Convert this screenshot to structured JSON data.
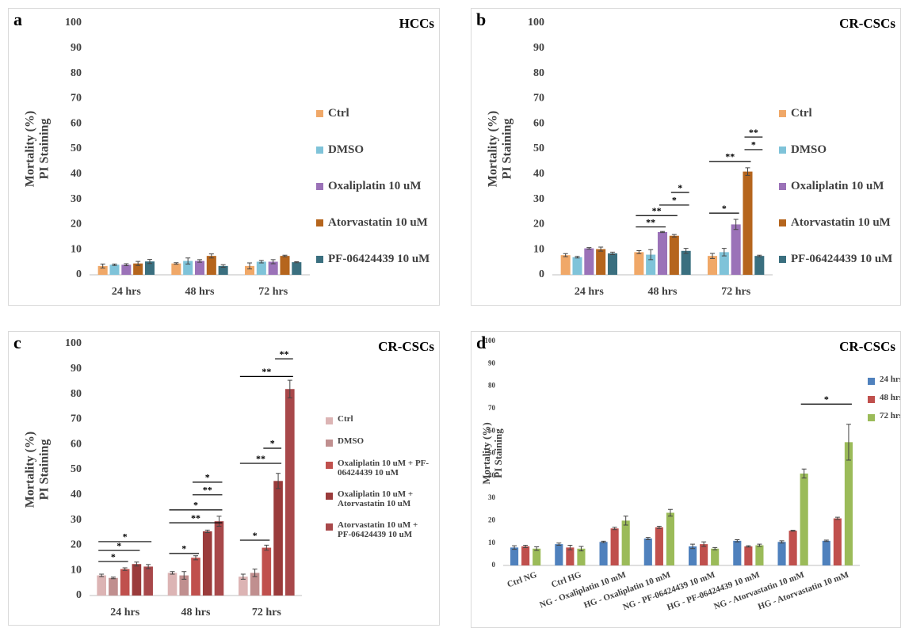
{
  "chart_data": [
    {
      "type": "bar",
      "panel": "a",
      "title": "HCCs",
      "ylabel": [
        "Mortality (%)",
        "PI Staining"
      ],
      "categories": [
        "24 hrs",
        "48 hrs",
        "72 hrs"
      ],
      "series": [
        {
          "name": "Ctrl",
          "color": "#f0a868",
          "values": [
            3.5,
            4.5,
            3.5
          ],
          "errors": [
            0.8,
            0.3,
            1.2
          ]
        },
        {
          "name": "DMSO",
          "color": "#7fc3d9",
          "values": [
            4,
            5.5,
            5.2
          ],
          "errors": [
            0.3,
            1.2,
            0.5
          ]
        },
        {
          "name": "Oxaliplatin 10 uM",
          "color": "#9b72b8",
          "values": [
            4,
            5.5,
            5.2
          ],
          "errors": [
            0.4,
            0.5,
            0.8
          ]
        },
        {
          "name": "Atorvastatin 10 uM",
          "color": "#b5651d",
          "values": [
            4.5,
            7.5,
            7.5
          ],
          "errors": [
            0.8,
            0.8,
            0.3
          ]
        },
        {
          "name": "PF-06424439 10 uM",
          "color": "#3a6f7f",
          "values": [
            5.3,
            3.5,
            5
          ],
          "errors": [
            0.8,
            0.5,
            0.2
          ]
        }
      ],
      "ylim": [
        0,
        100
      ],
      "yticks": [
        0,
        10,
        20,
        30,
        40,
        50,
        60,
        70,
        80,
        90,
        100
      ],
      "annotations": []
    },
    {
      "type": "bar",
      "panel": "b",
      "title": "CR-CSCs",
      "ylabel": [
        "Mortality (%)",
        "PI Staining"
      ],
      "categories": [
        "24 hrs",
        "48 hrs",
        "72 hrs"
      ],
      "series": [
        {
          "name": "Ctrl",
          "color": "#f0a868",
          "values": [
            7.8,
            9,
            7.5
          ],
          "errors": [
            0.6,
            0.6,
            1
          ]
        },
        {
          "name": "DMSO",
          "color": "#7fc3d9",
          "values": [
            7,
            8,
            9
          ],
          "errors": [
            0.3,
            2,
            1.5
          ]
        },
        {
          "name": "Oxaliplatin 10 uM",
          "color": "#9b72b8",
          "values": [
            10.5,
            17,
            20
          ],
          "errors": [
            0.3,
            0.2,
            2
          ]
        },
        {
          "name": "Atorvastatin 10 uM",
          "color": "#b5651d",
          "values": [
            10.2,
            15.5,
            41
          ],
          "errors": [
            0.8,
            0.5,
            1.5
          ]
        },
        {
          "name": "PF-06424439 10 uM",
          "color": "#3a6f7f",
          "values": [
            8.5,
            9.5,
            7.5
          ],
          "errors": [
            0.5,
            1,
            0.3
          ]
        }
      ],
      "ylim": [
        0,
        100
      ],
      "yticks": [
        0,
        10,
        20,
        30,
        40,
        50,
        60,
        70,
        80,
        90,
        100
      ],
      "annotations": [
        {
          "text": "**",
          "y": 19,
          "from": [
            1,
            0
          ],
          "to": [
            1,
            2
          ]
        },
        {
          "text": "**",
          "y": 23.5,
          "from": [
            1,
            0
          ],
          "to": [
            1,
            3
          ]
        },
        {
          "text": "*",
          "y": 27.7,
          "from": [
            1,
            2
          ],
          "to": [
            1,
            4
          ]
        },
        {
          "text": "*",
          "y": 32.7,
          "from": [
            1,
            3
          ],
          "to": [
            1,
            4
          ]
        },
        {
          "text": "*",
          "y": 24.5,
          "from": [
            2,
            0
          ],
          "to": [
            2,
            2
          ]
        },
        {
          "text": "**",
          "y": 45,
          "from": [
            2,
            0
          ],
          "to": [
            2,
            3
          ]
        },
        {
          "text": "*",
          "y": 49.7,
          "from": [
            2,
            3
          ],
          "to": [
            2,
            4
          ]
        },
        {
          "text": "**",
          "y": 54.7,
          "from": [
            2,
            3
          ],
          "to": [
            2,
            4
          ]
        }
      ]
    },
    {
      "type": "bar",
      "panel": "c",
      "title": "CR-CSCs",
      "ylabel": [
        "Mortality (%)",
        "PI Staining"
      ],
      "categories": [
        "24 hrs",
        "48 hrs",
        "72 hrs"
      ],
      "series": [
        {
          "name": "Ctrl",
          "color": "#dcb4b4",
          "values": [
            8,
            9,
            7.5
          ],
          "errors": [
            0.5,
            0.5,
            1
          ]
        },
        {
          "name": "DMSO",
          "color": "#c08f8f",
          "values": [
            7,
            8,
            9
          ],
          "errors": [
            0.3,
            1.5,
            1.5
          ]
        },
        {
          "name": "Oxaliplatin 10 uM + PF-06424439 10 uM",
          "color": "#c0504d",
          "values": [
            10.5,
            15,
            19
          ],
          "errors": [
            0.5,
            0.8,
            1
          ]
        },
        {
          "name": "Oxaliplatin 10 uM + Atorvastatin 10 uM",
          "color": "#9a3b3b",
          "values": [
            12.5,
            25.5,
            45.5
          ],
          "errors": [
            0.8,
            0.5,
            3
          ]
        },
        {
          "name": "Atorvastatin 10 uM + PF-06424439 10 uM",
          "color": "#a8484a",
          "values": [
            11.5,
            29.5,
            82
          ],
          "errors": [
            0.8,
            2,
            3.5
          ]
        }
      ],
      "ylim": [
        0,
        100
      ],
      "yticks": [
        0,
        10,
        20,
        30,
        40,
        50,
        60,
        70,
        80,
        90,
        100
      ],
      "annotations": [
        {
          "text": "*",
          "y": 13.5,
          "from": [
            0,
            0
          ],
          "to": [
            0,
            2
          ]
        },
        {
          "text": "*",
          "y": 17.9,
          "from": [
            0,
            0
          ],
          "to": [
            0,
            3
          ]
        },
        {
          "text": "*",
          "y": 21.4,
          "from": [
            0,
            0
          ],
          "to": [
            0,
            4
          ]
        },
        {
          "text": "*",
          "y": 16.7,
          "from": [
            1,
            0
          ],
          "to": [
            1,
            2
          ]
        },
        {
          "text": "**",
          "y": 28.9,
          "from": [
            1,
            0
          ],
          "to": [
            1,
            4
          ]
        },
        {
          "text": "*",
          "y": 34,
          "from": [
            1,
            0
          ],
          "to": [
            1,
            4
          ]
        },
        {
          "text": "**",
          "y": 40,
          "from": [
            1,
            2
          ],
          "to": [
            1,
            4
          ]
        },
        {
          "text": "*",
          "y": 45,
          "from": [
            1,
            2
          ],
          "to": [
            1,
            4
          ]
        },
        {
          "text": "*",
          "y": 22,
          "from": [
            2,
            0
          ],
          "to": [
            2,
            2
          ]
        },
        {
          "text": "**",
          "y": 52.5,
          "from": [
            2,
            0
          ],
          "to": [
            2,
            3
          ]
        },
        {
          "text": "*",
          "y": 58.5,
          "from": [
            2,
            2
          ],
          "to": [
            2,
            3
          ]
        },
        {
          "text": "**",
          "y": 87,
          "from": [
            2,
            0
          ],
          "to": [
            2,
            4
          ]
        },
        {
          "text": "**",
          "y": 94,
          "from": [
            2,
            3
          ],
          "to": [
            2,
            4
          ]
        }
      ]
    },
    {
      "type": "bar",
      "panel": "d",
      "title": "CR-CSCs",
      "ylabel": [
        "Mortality (%)",
        "PI Staining"
      ],
      "categories": [
        "Ctrl NG",
        "Ctrl HG",
        "NG - Oxaliplatin 10 mM",
        "HG - Oxaliplatin 10 mM",
        "NG - PF-06424439 10 mM",
        "HG - PF-06424439 10 mM",
        "NG - Atorvastatin 10 mM",
        "HG - Atorvastatin 10 mM"
      ],
      "series": [
        {
          "name": "24 hrs",
          "color": "#4f81bd",
          "values": [
            8,
            9.5,
            10.5,
            12,
            8.5,
            11,
            10.5,
            11
          ],
          "errors": [
            0.8,
            0.5,
            0.3,
            0.5,
            1,
            0.5,
            0.5,
            0.3
          ]
        },
        {
          "name": "48 hrs",
          "color": "#c0504d",
          "values": [
            8.5,
            8,
            16.5,
            17,
            9.5,
            8.5,
            15.5,
            21
          ],
          "errors": [
            0.5,
            1,
            0.5,
            0.5,
            1,
            0.3,
            0.2,
            0.5
          ]
        },
        {
          "name": "72 hrs",
          "color": "#9bbb59",
          "values": [
            7.5,
            7.5,
            20,
            23.5,
            7.5,
            9,
            41,
            55
          ],
          "errors": [
            0.8,
            1,
            2,
            1.5,
            0.5,
            0.5,
            2,
            8
          ]
        }
      ],
      "ylim": [
        0,
        100
      ],
      "yticks": [
        0,
        10,
        20,
        30,
        40,
        50,
        60,
        70,
        80,
        90,
        100
      ],
      "annotations": [
        {
          "text": "*",
          "y": 72,
          "from": [
            6,
            2
          ],
          "to": [
            7,
            2
          ]
        }
      ]
    }
  ]
}
